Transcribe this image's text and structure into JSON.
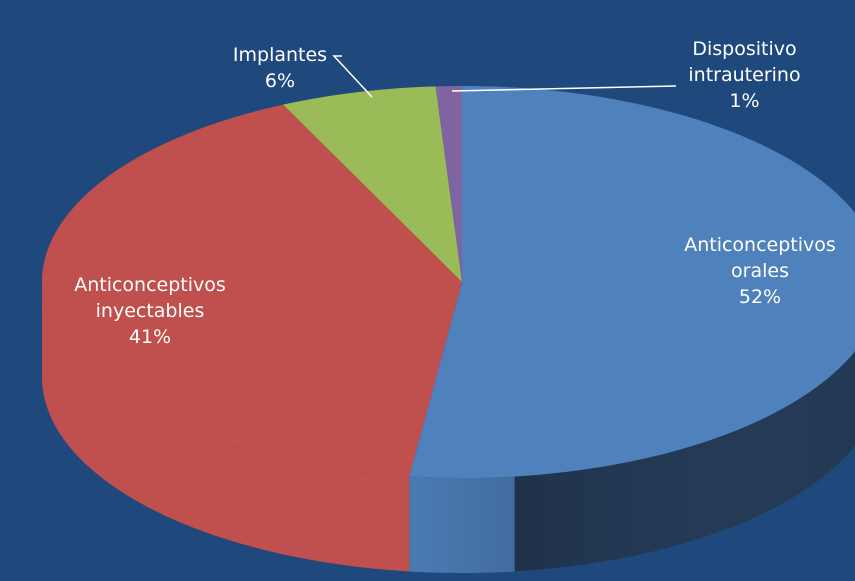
{
  "chart_data": {
    "type": "pie",
    "categories": [
      "Anticonceptivos orales",
      "Anticonceptivos inyectables",
      "Implantes",
      "Dispositivo intrauterino"
    ],
    "values": [
      52,
      41,
      6,
      1
    ],
    "value_labels": [
      "52%",
      "41%",
      "6%",
      "1%"
    ],
    "colors": [
      "#4f81bd",
      "#c0504d",
      "#9bbb59",
      "#8064a2"
    ]
  }
}
